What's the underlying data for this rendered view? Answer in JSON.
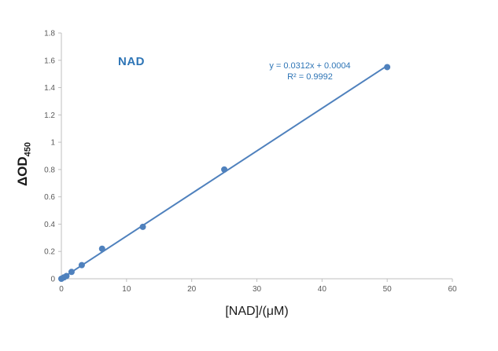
{
  "chart_data": {
    "type": "scatter",
    "title": "NAD",
    "equation_line1": "y = 0.0312x + 0.0004",
    "equation_line2": "R² = 0.9992",
    "xlabel": "[NAD]/(μM)",
    "ylabel": "ΔOD",
    "ylabel_sub": "450",
    "xlim": [
      0,
      60
    ],
    "ylim": [
      0,
      1.8
    ],
    "x_ticks": [
      "0",
      "10",
      "20",
      "30",
      "40",
      "50",
      "60"
    ],
    "y_ticks": [
      "0",
      "0.2",
      "0.4",
      "0.6",
      "0.8",
      "1",
      "1.2",
      "1.4",
      "1.6",
      "1.8"
    ],
    "grid": false,
    "legend": "none",
    "x": [
      0,
      0.39,
      0.78,
      1.56,
      3.13,
      6.25,
      12.5,
      25,
      50
    ],
    "y": [
      0,
      0.01,
      0.02,
      0.05,
      0.1,
      0.22,
      0.38,
      0.8,
      1.55
    ],
    "trendline": {
      "slope": 0.0312,
      "intercept": 0.0004,
      "x_start": 0,
      "x_end": 50
    },
    "colors": {
      "series": "#4f81bd",
      "text": "#2e75b6",
      "axis": "#bfbfbf",
      "tick": "#595959"
    }
  }
}
